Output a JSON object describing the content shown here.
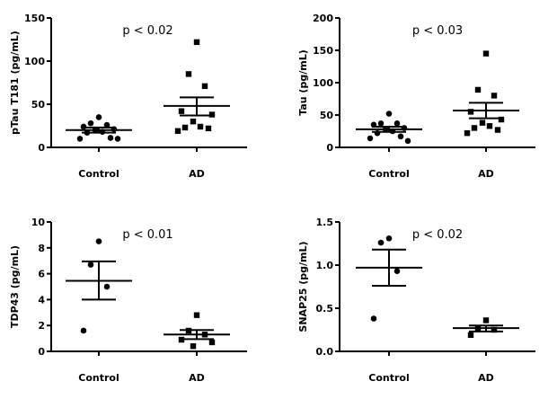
{
  "chart_data": [
    {
      "type": "scatter",
      "ylabel": "pTau T181 (pg/mL)",
      "annotation": "p < 0.02",
      "categories": [
        "Control",
        "AD"
      ],
      "ylim": [
        0,
        150
      ],
      "yticks": [
        "0",
        "50",
        "100",
        "150"
      ],
      "series": [
        {
          "category": "Control",
          "marker": "circle",
          "values": [
            35,
            28,
            26,
            24,
            21,
            20,
            18,
            17,
            11,
            10,
            10
          ],
          "mean": 20,
          "sem_low": 17,
          "sem_high": 23
        },
        {
          "category": "AD",
          "marker": "square",
          "values": [
            122,
            85,
            71,
            42,
            38,
            30,
            24,
            23,
            22,
            19
          ],
          "mean": 48,
          "sem_low": 37,
          "sem_high": 58
        }
      ]
    },
    {
      "type": "scatter",
      "ylabel": "Tau (pg/mL)",
      "annotation": "p < 0.03",
      "categories": [
        "Control",
        "AD"
      ],
      "ylim": [
        0,
        200
      ],
      "yticks": [
        "0",
        "50",
        "100",
        "150",
        "200"
      ],
      "series": [
        {
          "category": "Control",
          "marker": "circle",
          "values": [
            52,
            37,
            37,
            35,
            30,
            28,
            25,
            22,
            17,
            14,
            10
          ],
          "mean": 28,
          "sem_low": 24,
          "sem_high": 32
        },
        {
          "category": "AD",
          "marker": "square",
          "values": [
            145,
            89,
            80,
            55,
            43,
            38,
            33,
            30,
            27,
            22
          ],
          "mean": 57,
          "sem_low": 45,
          "sem_high": 69
        }
      ]
    },
    {
      "type": "scatter",
      "ylabel": "TDP43 (pg/mL)",
      "annotation": "p < 0.01",
      "categories": [
        "Control",
        "AD"
      ],
      "ylim": [
        0,
        10
      ],
      "yticks": [
        "0",
        "2",
        "4",
        "6",
        "8",
        "10"
      ],
      "series": [
        {
          "category": "Control",
          "marker": "circle",
          "values": [
            8.5,
            6.7,
            5.0,
            1.6
          ],
          "mean": 5.45,
          "sem_low": 4.0,
          "sem_high": 6.95
        },
        {
          "category": "AD",
          "marker": "square",
          "values": [
            2.8,
            1.6,
            1.3,
            0.9,
            0.7,
            0.4
          ],
          "mean": 1.3,
          "sem_low": 0.95,
          "sem_high": 1.65
        }
      ]
    },
    {
      "type": "scatter",
      "ylabel": "SNAP25 (pg/mL)",
      "annotation": "p < 0.02",
      "categories": [
        "Control",
        "AD"
      ],
      "ylim": [
        0,
        1.5
      ],
      "yticks": [
        "0.0",
        "0.5",
        "1.0",
        "1.5"
      ],
      "series": [
        {
          "category": "Control",
          "marker": "circle",
          "values": [
            1.31,
            1.26,
            0.93,
            0.38
          ],
          "mean": 0.97,
          "sem_low": 0.76,
          "sem_high": 1.18
        },
        {
          "category": "AD",
          "marker": "square",
          "values": [
            0.36,
            0.27,
            0.25,
            0.19
          ],
          "mean": 0.27,
          "sem_low": 0.23,
          "sem_high": 0.3
        }
      ]
    }
  ]
}
